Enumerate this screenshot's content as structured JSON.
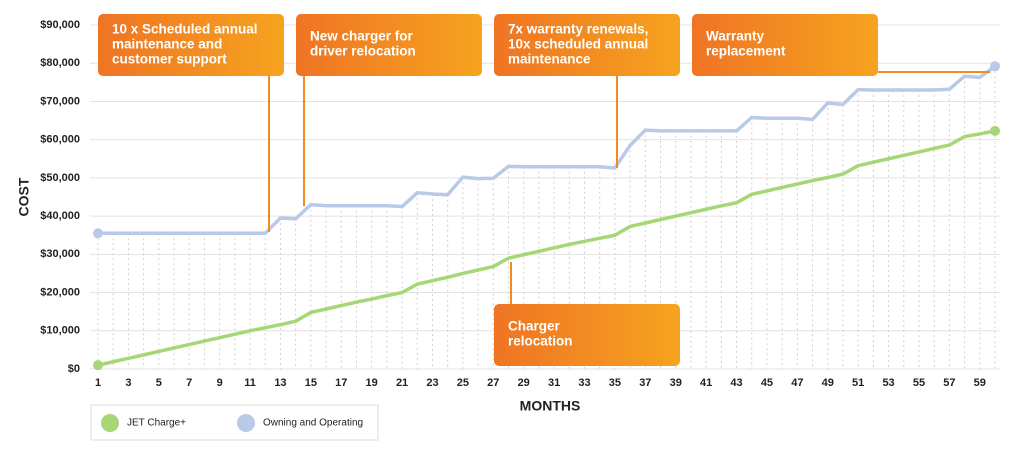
{
  "chart_data": {
    "type": "line",
    "xlabel": "MONTHS",
    "ylabel": "COST",
    "x": [
      1,
      2,
      3,
      4,
      5,
      6,
      7,
      8,
      9,
      10,
      11,
      12,
      13,
      14,
      15,
      16,
      17,
      18,
      19,
      20,
      21,
      22,
      23,
      24,
      25,
      26,
      27,
      28,
      29,
      30,
      31,
      32,
      33,
      34,
      35,
      36,
      37,
      38,
      39,
      40,
      41,
      42,
      43,
      44,
      45,
      46,
      47,
      48,
      49,
      50,
      51,
      52,
      53,
      54,
      55,
      56,
      57,
      58,
      59,
      60
    ],
    "xlim": [
      1,
      60
    ],
    "xticks": [
      1,
      3,
      5,
      7,
      9,
      11,
      13,
      15,
      17,
      19,
      21,
      23,
      25,
      27,
      29,
      31,
      33,
      35,
      37,
      39,
      41,
      43,
      45,
      47,
      49,
      51,
      53,
      55,
      57,
      59
    ],
    "ylim": [
      0,
      90000
    ],
    "yticks": [
      {
        "value": 0,
        "label": "$0"
      },
      {
        "value": 10000,
        "label": "$10,000"
      },
      {
        "value": 20000,
        "label": "$20,000"
      },
      {
        "value": 30000,
        "label": "$30,000"
      },
      {
        "value": 40000,
        "label": "$40,000"
      },
      {
        "value": 50000,
        "label": "$50,000"
      },
      {
        "value": 60000,
        "label": "$60,000"
      },
      {
        "value": 70000,
        "label": "$70,000"
      },
      {
        "value": 80000,
        "label": "$80,000"
      },
      {
        "value": 90000,
        "label": "$90,000"
      }
    ],
    "grid": true,
    "series": [
      {
        "name": "JET Charge+",
        "color": "#a6d676",
        "values": [
          1000,
          1900,
          2800,
          3700,
          4600,
          5500,
          6400,
          7300,
          8200,
          9100,
          10000,
          10800,
          11600,
          12500,
          14800,
          15700,
          16600,
          17500,
          18300,
          19200,
          20000,
          22200,
          23100,
          24000,
          25000,
          25900,
          26800,
          29000,
          29900,
          30800,
          31700,
          32600,
          33400,
          34200,
          35000,
          37300,
          38200,
          39100,
          40000,
          40900,
          41800,
          42700,
          43500,
          45700,
          46600,
          47500,
          48400,
          49300,
          50100,
          51000,
          53200,
          54100,
          55000,
          55900,
          56800,
          57700,
          58600,
          60800,
          61500,
          62300
        ]
      },
      {
        "name": "Owning and Operating",
        "color": "#b9c9e8",
        "values": [
          35500,
          35500,
          35500,
          35500,
          35500,
          35500,
          35500,
          35500,
          35500,
          35500,
          35500,
          35500,
          39500,
          39300,
          43000,
          42700,
          42700,
          42700,
          42700,
          42700,
          42500,
          46100,
          45800,
          45600,
          50200,
          49800,
          49900,
          53000,
          52900,
          52900,
          52900,
          52900,
          52900,
          52900,
          52600,
          58500,
          62500,
          62300,
          62300,
          62300,
          62300,
          62300,
          62300,
          65800,
          65600,
          65600,
          65600,
          65300,
          69600,
          69200,
          73100,
          73000,
          73000,
          73000,
          73000,
          73000,
          73200,
          76600,
          76300,
          79200
        ]
      }
    ],
    "annotations": [
      {
        "lines": [
          "10 x Scheduled annual",
          "maintenance and",
          "customer support"
        ]
      },
      {
        "lines": [
          "New charger for",
          "driver relocation"
        ]
      },
      {
        "lines": [
          "7x warranty renewals,",
          "10x scheduled annual",
          "maintenance"
        ]
      },
      {
        "lines": [
          "Warranty",
          "replacement"
        ]
      },
      {
        "lines": [
          "Charger",
          "relocation"
        ]
      }
    ]
  }
}
